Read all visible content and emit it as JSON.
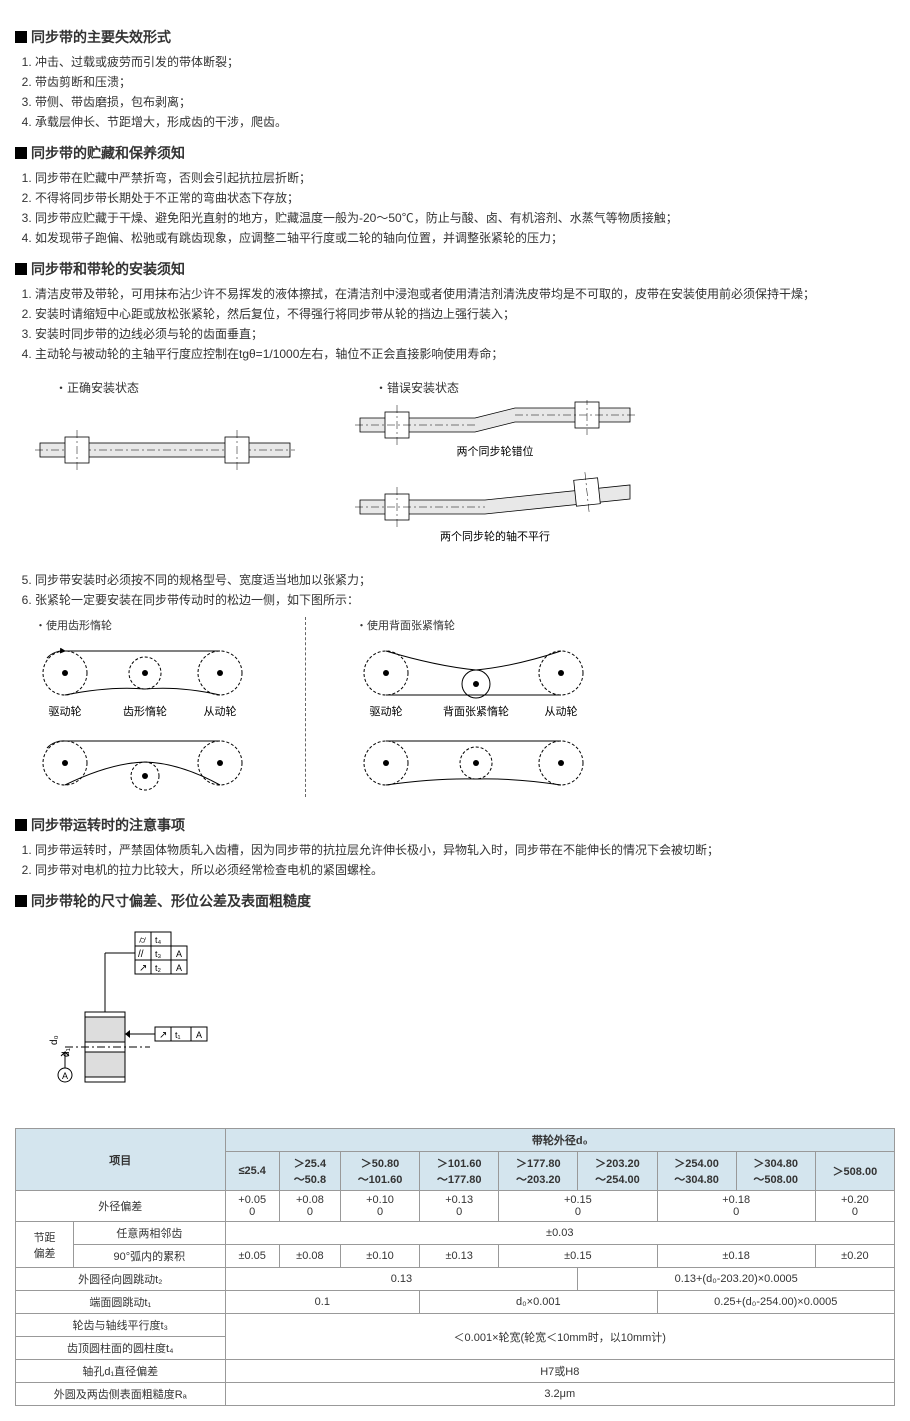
{
  "sections": {
    "failure": {
      "title": "同步带的主要失效形式",
      "items": [
        "冲击、过载或疲劳而引发的带体断裂；",
        "带齿剪断和压溃；",
        "带侧、带齿磨损，包布剥离；",
        "承载层伸长、节距增大，形成齿的干涉，爬齿。"
      ]
    },
    "storage": {
      "title": "同步带的贮藏和保养须知",
      "items": [
        "同步带在贮藏中严禁折弯，否则会引起抗拉层折断；",
        "不得将同步带长期处于不正常的弯曲状态下存放；",
        "同步带应贮藏于干燥、避免阳光直射的地方，贮藏温度一般为-20～50℃，防止与酸、卤、有机溶剂、水蒸气等物质接触；",
        "如发现带子跑偏、松驰或有跳齿现象，应调整二轴平行度或二轮的轴向位置，并调整张紧轮的压力；"
      ]
    },
    "install": {
      "title": "同步带和带轮的安装须知",
      "items_a": [
        "清洁皮带及带轮，可用抹布沾少许不易挥发的液体擦拭，在清洁剂中浸泡或者使用清洁剂清洗皮带均是不可取的，皮带在安装使用前必须保持干燥；",
        "安装时请缩短中心距或放松张紧轮，然后复位，不得强行将同步带从轮的挡边上强行装入；",
        "安装时同步带的边线必须与轮的齿面垂直；",
        "主动轮与被动轮的主轴平行度应控制在tgθ=1/1000左右，轴位不正会直接影响使用寿命；"
      ],
      "items_b": [
        "同步带安装时必须按不同的规格型号、宽度适当地加以张紧力；",
        "张紧轮一定要安装在同步带传动时的松边一侧，如下图所示："
      ]
    },
    "correct_title": "・正确安装状态",
    "wrong_title": "・错误安装状态",
    "wrong_caption1": "两个同步轮错位",
    "wrong_caption2": "两个同步轮的轴不平行",
    "idler_gear_title": "・使用齿形惰轮",
    "idler_back_title": "・使用背面张紧惰轮",
    "drive_wheel": "驱动轮",
    "idler_gear": "齿形惰轮",
    "back_idler": "背面张紧惰轮",
    "driven_wheel": "从动轮",
    "runtime": {
      "title": "同步带运转时的注意事项",
      "items": [
        "同步带运转时，严禁固体物质轧入齿槽，因为同步带的抗拉层允许伸长极小，异物轧入时，同步带在不能伸长的情况下会被切断；",
        "同步带对电机的拉力比较大，所以必须经常检查电机的紧固螺栓。"
      ]
    },
    "tolerance": {
      "title": "同步带轮的尺寸偏差、形位公差及表面粗糙度"
    },
    "table": {
      "col_project": "项目",
      "col_diameter_header": "带轮外径d₀",
      "ranges": [
        "≤25.4",
        "＞25.4\n～50.8",
        "＞50.80\n～101.60",
        "＞101.60\n～177.80",
        "＞177.80\n～203.20",
        "＞203.20\n～254.00",
        "＞254.00\n～304.80",
        "＞304.80\n～508.00",
        "＞508.00"
      ],
      "row_od": "外径偏差",
      "od_vals": [
        "+0.05\n0",
        "+0.08\n0",
        "+0.10\n0",
        "+0.13\n0",
        "+0.15\n0",
        "+0.18\n0",
        "+0.20\n0"
      ],
      "row_pitch": "节距\n偏差",
      "row_pitch_adj": "任意两相邻齿",
      "row_pitch_adj_val": "±0.03",
      "row_pitch_90": "90°弧内的累积",
      "pitch90_vals": [
        "±0.05",
        "±0.08",
        "±0.10",
        "±0.13",
        "±0.15",
        "±0.18",
        "±0.20"
      ],
      "row_rad_runout": "外圆径向圆跳动t₂",
      "rad_runout_a": "0.13",
      "rad_runout_b": "0.13+(d₀-203.20)×0.0005",
      "row_face_runout": "端面圆跳动t₁",
      "face_runout_a": "0.1",
      "face_runout_b": "d₀×0.001",
      "face_runout_c": "0.25+(d₀-254.00)×0.0005",
      "row_parallel": "轮齿与轴线平行度t₃",
      "parallel_cyl_val": "＜0.001×轮宽(轮宽＜10mm时，以10mm计)",
      "row_cyl": "齿顶圆柱面的圆柱度t₄",
      "row_bore": "轴孔d₁直径偏差",
      "bore_val": "H7或H8",
      "row_roughness": "外圆及两齿侧表面粗糙度Rₐ",
      "roughness_val": "3.2μm"
    }
  }
}
